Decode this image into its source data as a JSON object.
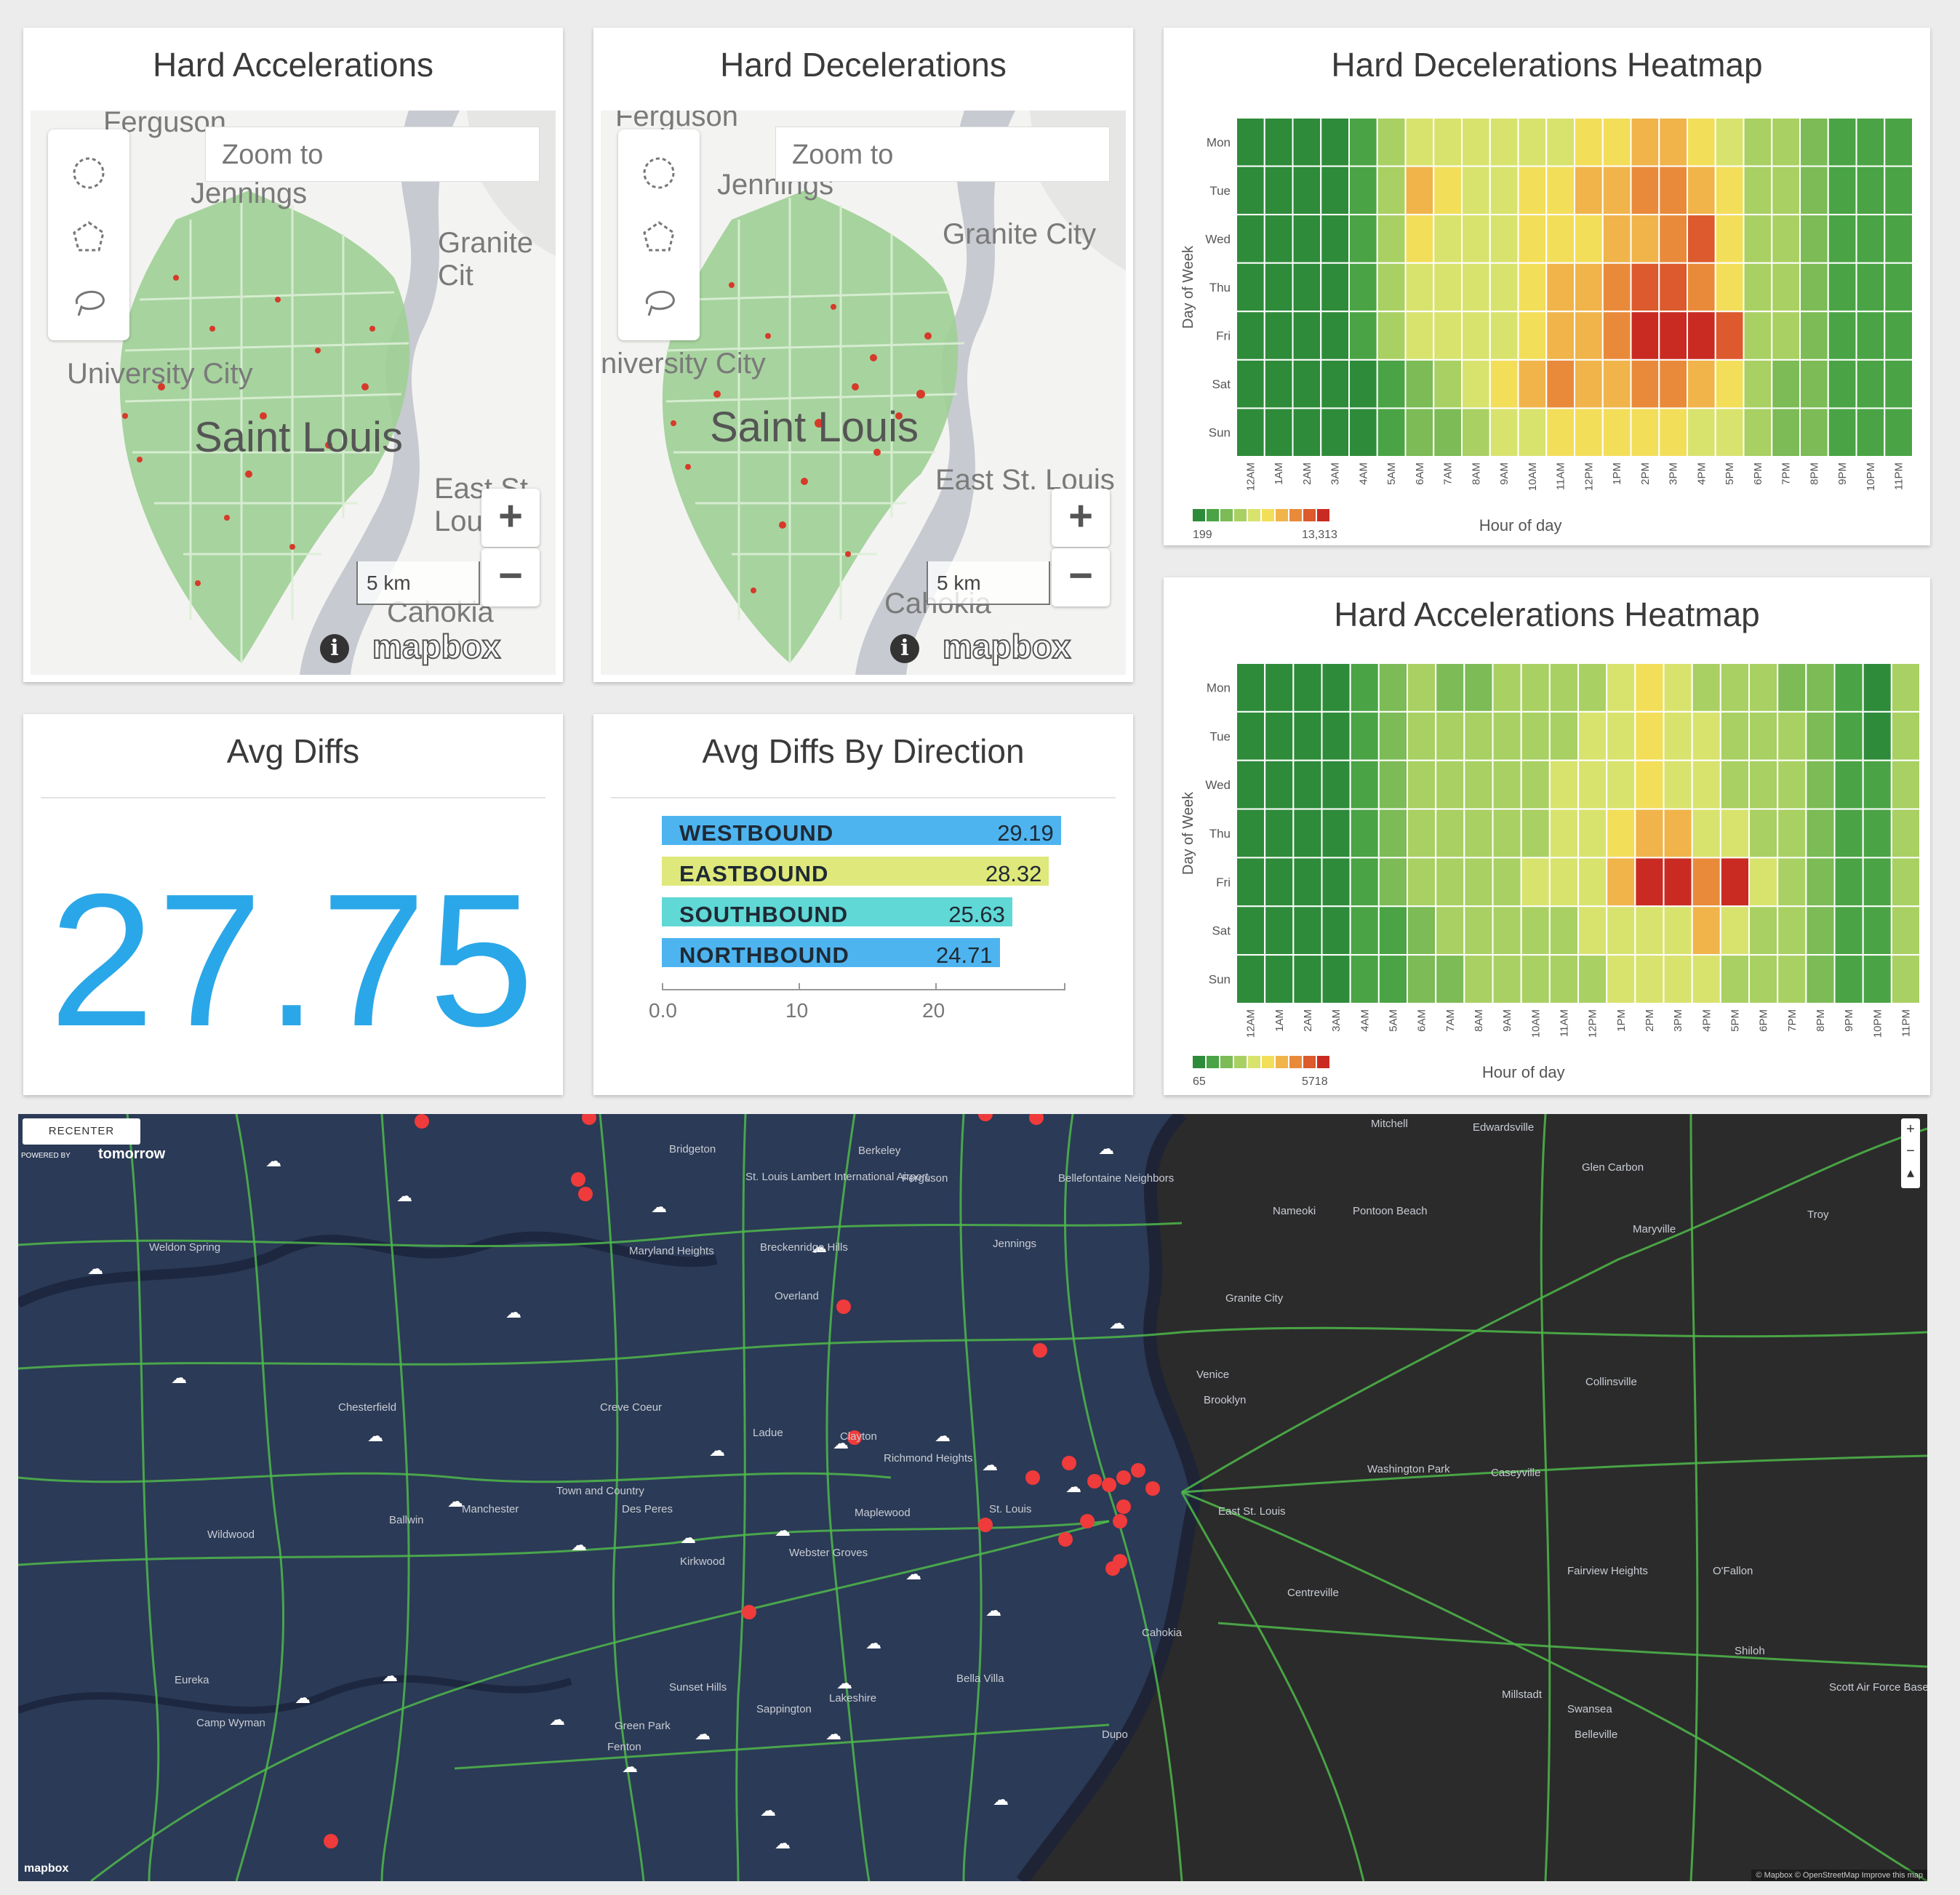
{
  "panels": {
    "hard_accel_map": {
      "title": "Hard Accelerations",
      "zoom_placeholder": "Zoom to",
      "places": [
        "Ferguson",
        "Jennings",
        "Granite Cit",
        "University City",
        "Saint Louis",
        "East St. Lou",
        "Cahokia"
      ],
      "scale": "5 km",
      "attribution": "mapbox"
    },
    "hard_decel_map": {
      "title": "Hard Decelerations",
      "zoom_placeholder": "Zoom to",
      "places": [
        "Ferguson",
        "Jennings",
        "Granite City",
        "niversity City",
        "Saint Louis",
        "East St. Louis",
        "Cahokia"
      ],
      "scale": "5 km",
      "attribution": "mapbox"
    },
    "avg_diffs": {
      "title": "Avg Diffs",
      "value": "27.75"
    },
    "avg_diffs_direction": {
      "title": "Avg Diffs By Direction"
    },
    "decel_heatmap": {
      "title": "Hard Decelerations Heatmap",
      "legend_min": "199",
      "legend_max": "13,313"
    },
    "accel_heatmap": {
      "title": "Hard Accelerations Heatmap",
      "legend_min": "65",
      "legend_max": "5718"
    }
  },
  "chart_data": [
    {
      "type": "bar",
      "title": "Avg Diffs By Direction",
      "categories": [
        "WESTBOUND",
        "EASTBOUND",
        "SOUTHBOUND",
        "NORTHBOUND"
      ],
      "values": [
        29.19,
        28.32,
        25.63,
        24.71
      ],
      "value_labels": [
        "29.19",
        "28.32",
        "25.63",
        "24.71"
      ],
      "colors": [
        "#4db4f0",
        "#dfe87a",
        "#5fd8d6",
        "#4db4f0"
      ],
      "xlim": [
        0,
        30
      ],
      "ticks": [
        "0.0",
        "10",
        "20"
      ],
      "orientation": "horizontal"
    },
    {
      "type": "heatmap",
      "title": "Hard Decelerations Heatmap",
      "xlabel": "Hour of day",
      "ylabel": "Day of Week",
      "x": [
        "12AM",
        "1AM",
        "2AM",
        "3AM",
        "4AM",
        "5AM",
        "6AM",
        "7AM",
        "8AM",
        "9AM",
        "10AM",
        "11AM",
        "12PM",
        "1PM",
        "2PM",
        "3PM",
        "4PM",
        "5PM",
        "6PM",
        "7PM",
        "8PM",
        "9PM",
        "10PM",
        "11PM"
      ],
      "y": [
        "Mon",
        "Tue",
        "Wed",
        "Thu",
        "Fri",
        "Sat",
        "Sun"
      ],
      "levels": [
        [
          0,
          0,
          0,
          0,
          1,
          3,
          4,
          4,
          4,
          4,
          4,
          4,
          5,
          5,
          6,
          6,
          5,
          4,
          3,
          3,
          2,
          1,
          1,
          1
        ],
        [
          0,
          0,
          0,
          0,
          1,
          3,
          6,
          5,
          4,
          4,
          5,
          5,
          6,
          6,
          7,
          7,
          6,
          5,
          3,
          3,
          2,
          1,
          1,
          1
        ],
        [
          0,
          0,
          0,
          0,
          1,
          3,
          5,
          4,
          4,
          4,
          5,
          5,
          5,
          6,
          6,
          7,
          8,
          5,
          3,
          3,
          2,
          1,
          1,
          1
        ],
        [
          0,
          0,
          0,
          0,
          1,
          3,
          4,
          4,
          4,
          4,
          5,
          6,
          6,
          7,
          8,
          8,
          7,
          5,
          3,
          3,
          2,
          1,
          1,
          1
        ],
        [
          0,
          0,
          0,
          0,
          1,
          3,
          4,
          4,
          4,
          4,
          5,
          6,
          6,
          7,
          9,
          9,
          9,
          8,
          3,
          3,
          2,
          1,
          1,
          1
        ],
        [
          0,
          0,
          0,
          0,
          0,
          1,
          2,
          3,
          4,
          5,
          6,
          7,
          6,
          6,
          7,
          7,
          6,
          5,
          3,
          2,
          2,
          1,
          1,
          1
        ],
        [
          0,
          0,
          0,
          0,
          0,
          1,
          2,
          2,
          3,
          4,
          4,
          5,
          5,
          5,
          5,
          5,
          4,
          4,
          3,
          2,
          2,
          1,
          1,
          1
        ]
      ],
      "legend_colors": [
        "#2e8b3a",
        "#4aa445",
        "#7cbb55",
        "#a9d062",
        "#d8e36e",
        "#f3de5a",
        "#f0b44a",
        "#e98a3b",
        "#dc5a2d",
        "#c92b23"
      ],
      "legend_range": [
        "199",
        "13,313"
      ]
    },
    {
      "type": "heatmap",
      "title": "Hard Accelerations Heatmap",
      "xlabel": "Hour of day",
      "ylabel": "Day of Week",
      "x": [
        "12AM",
        "1AM",
        "2AM",
        "3AM",
        "4AM",
        "5AM",
        "6AM",
        "7AM",
        "8AM",
        "9AM",
        "10AM",
        "11AM",
        "12PM",
        "1PM",
        "2PM",
        "3PM",
        "4PM",
        "5PM",
        "6PM",
        "7PM",
        "8PM",
        "9PM",
        "10PM",
        "11PM"
      ],
      "y": [
        "Mon",
        "Tue",
        "Wed",
        "Thu",
        "Fri",
        "Sat",
        "Sun"
      ],
      "levels": [
        [
          0,
          0,
          0,
          0,
          1,
          2,
          3,
          2,
          2,
          3,
          3,
          3,
          3,
          4,
          5,
          4,
          3,
          3,
          3,
          2,
          2,
          1,
          0,
          3
        ],
        [
          0,
          0,
          0,
          0,
          1,
          2,
          3,
          3,
          3,
          3,
          3,
          3,
          4,
          4,
          5,
          4,
          4,
          3,
          3,
          3,
          2,
          1,
          0,
          3
        ],
        [
          0,
          0,
          0,
          0,
          1,
          2,
          3,
          3,
          3,
          3,
          3,
          4,
          4,
          4,
          5,
          4,
          4,
          3,
          3,
          3,
          2,
          1,
          1,
          3
        ],
        [
          0,
          0,
          0,
          0,
          1,
          2,
          3,
          3,
          3,
          3,
          3,
          4,
          4,
          5,
          6,
          6,
          4,
          4,
          3,
          3,
          2,
          1,
          1,
          3
        ],
        [
          0,
          0,
          0,
          0,
          1,
          2,
          3,
          3,
          3,
          3,
          4,
          4,
          4,
          6,
          9,
          9,
          7,
          9,
          4,
          3,
          2,
          1,
          1,
          3
        ],
        [
          0,
          0,
          0,
          0,
          1,
          1,
          2,
          3,
          3,
          3,
          3,
          3,
          4,
          4,
          4,
          4,
          6,
          4,
          3,
          3,
          2,
          1,
          1,
          3
        ],
        [
          0,
          0,
          0,
          0,
          1,
          1,
          2,
          2,
          3,
          3,
          3,
          3,
          3,
          4,
          4,
          4,
          4,
          3,
          3,
          3,
          2,
          1,
          1,
          3
        ]
      ],
      "legend_colors": [
        "#2e8b3a",
        "#4aa445",
        "#7cbb55",
        "#a9d062",
        "#d8e36e",
        "#f3de5a",
        "#f0b44a",
        "#e98a3b",
        "#dc5a2d",
        "#c92b23"
      ],
      "legend_range": [
        "65",
        "5718"
      ]
    }
  ],
  "bigmap": {
    "recenter": "RECENTER",
    "powered_by": "POWERED BY",
    "brand": "tomorrow",
    "attribution": "© Mapbox © OpenStreetMap Improve this map",
    "mapbox": "mapbox",
    "places": [
      "Bridgeton",
      "Berkeley",
      "Ferguson",
      "Bellefontaine Neighbors",
      "St. Louis Lambert International Airport",
      "Weldon Spring",
      "Maryland Heights",
      "Breckenridge Hills",
      "Jennings",
      "Overland",
      "Chesterfield",
      "Creve Coeur",
      "Ladue",
      "Clayton",
      "Richmond Heights",
      "Town and Country",
      "Des Peres",
      "Maplewood",
      "Ballwin",
      "Manchester",
      "Webster Groves",
      "Kirkwood",
      "Wildwood",
      "Sunset Hills",
      "Lakeshire",
      "Bella Villa",
      "Sappington",
      "Green Park",
      "Fenton",
      "Eureka",
      "Camp Wyman",
      "Nameoki",
      "Pontoon Beach",
      "Glen Carbon",
      "Troy",
      "Maryville",
      "Granite City",
      "Venice",
      "Brooklyn",
      "Collinsville",
      "Washington Park",
      "Caseyville",
      "East St. Louis",
      "Centreville",
      "Fairview Heights",
      "O'Fallon",
      "Cahokia",
      "Shiloh",
      "Scott Air Force Base",
      "Swansea",
      "Belleville",
      "Dupo",
      "Millstadt",
      "Mitchell",
      "Edwardsville",
      "St. Louis"
    ],
    "accent_road": "#4fb84a",
    "incident_color": "#ef3b3b"
  }
}
